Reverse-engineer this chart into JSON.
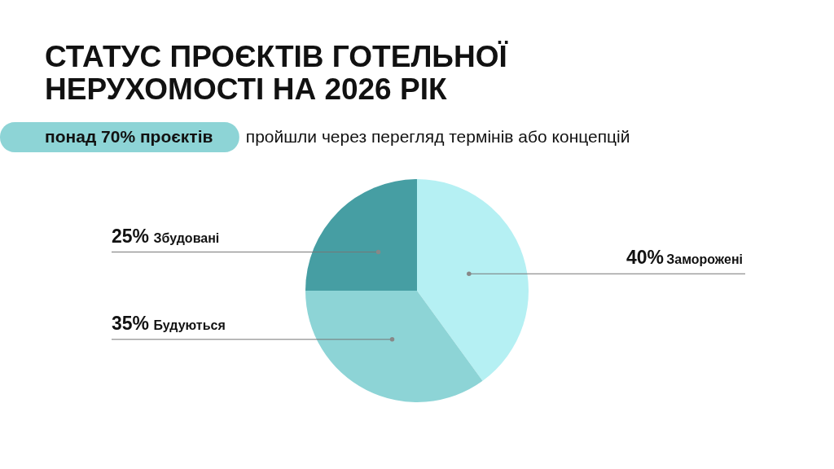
{
  "chart_data": {
    "type": "pie",
    "title": "СТАТУС ПРОЄКТІВ ГОТЕЛЬНОЇ НЕРУХОМОСТІ НА 2026 РІК",
    "subtitle": "понад 70% проєктів пройшли через перегляд термінів або концепцій",
    "categories": [
      "Заморожені",
      "Будуються",
      "Збудовані"
    ],
    "values": [
      40,
      35,
      25
    ],
    "value_labels": [
      "40%",
      "35%",
      "25%"
    ],
    "colors": [
      "#b5f0f3",
      "#8dd4d6",
      "#469ea3"
    ]
  }
}
